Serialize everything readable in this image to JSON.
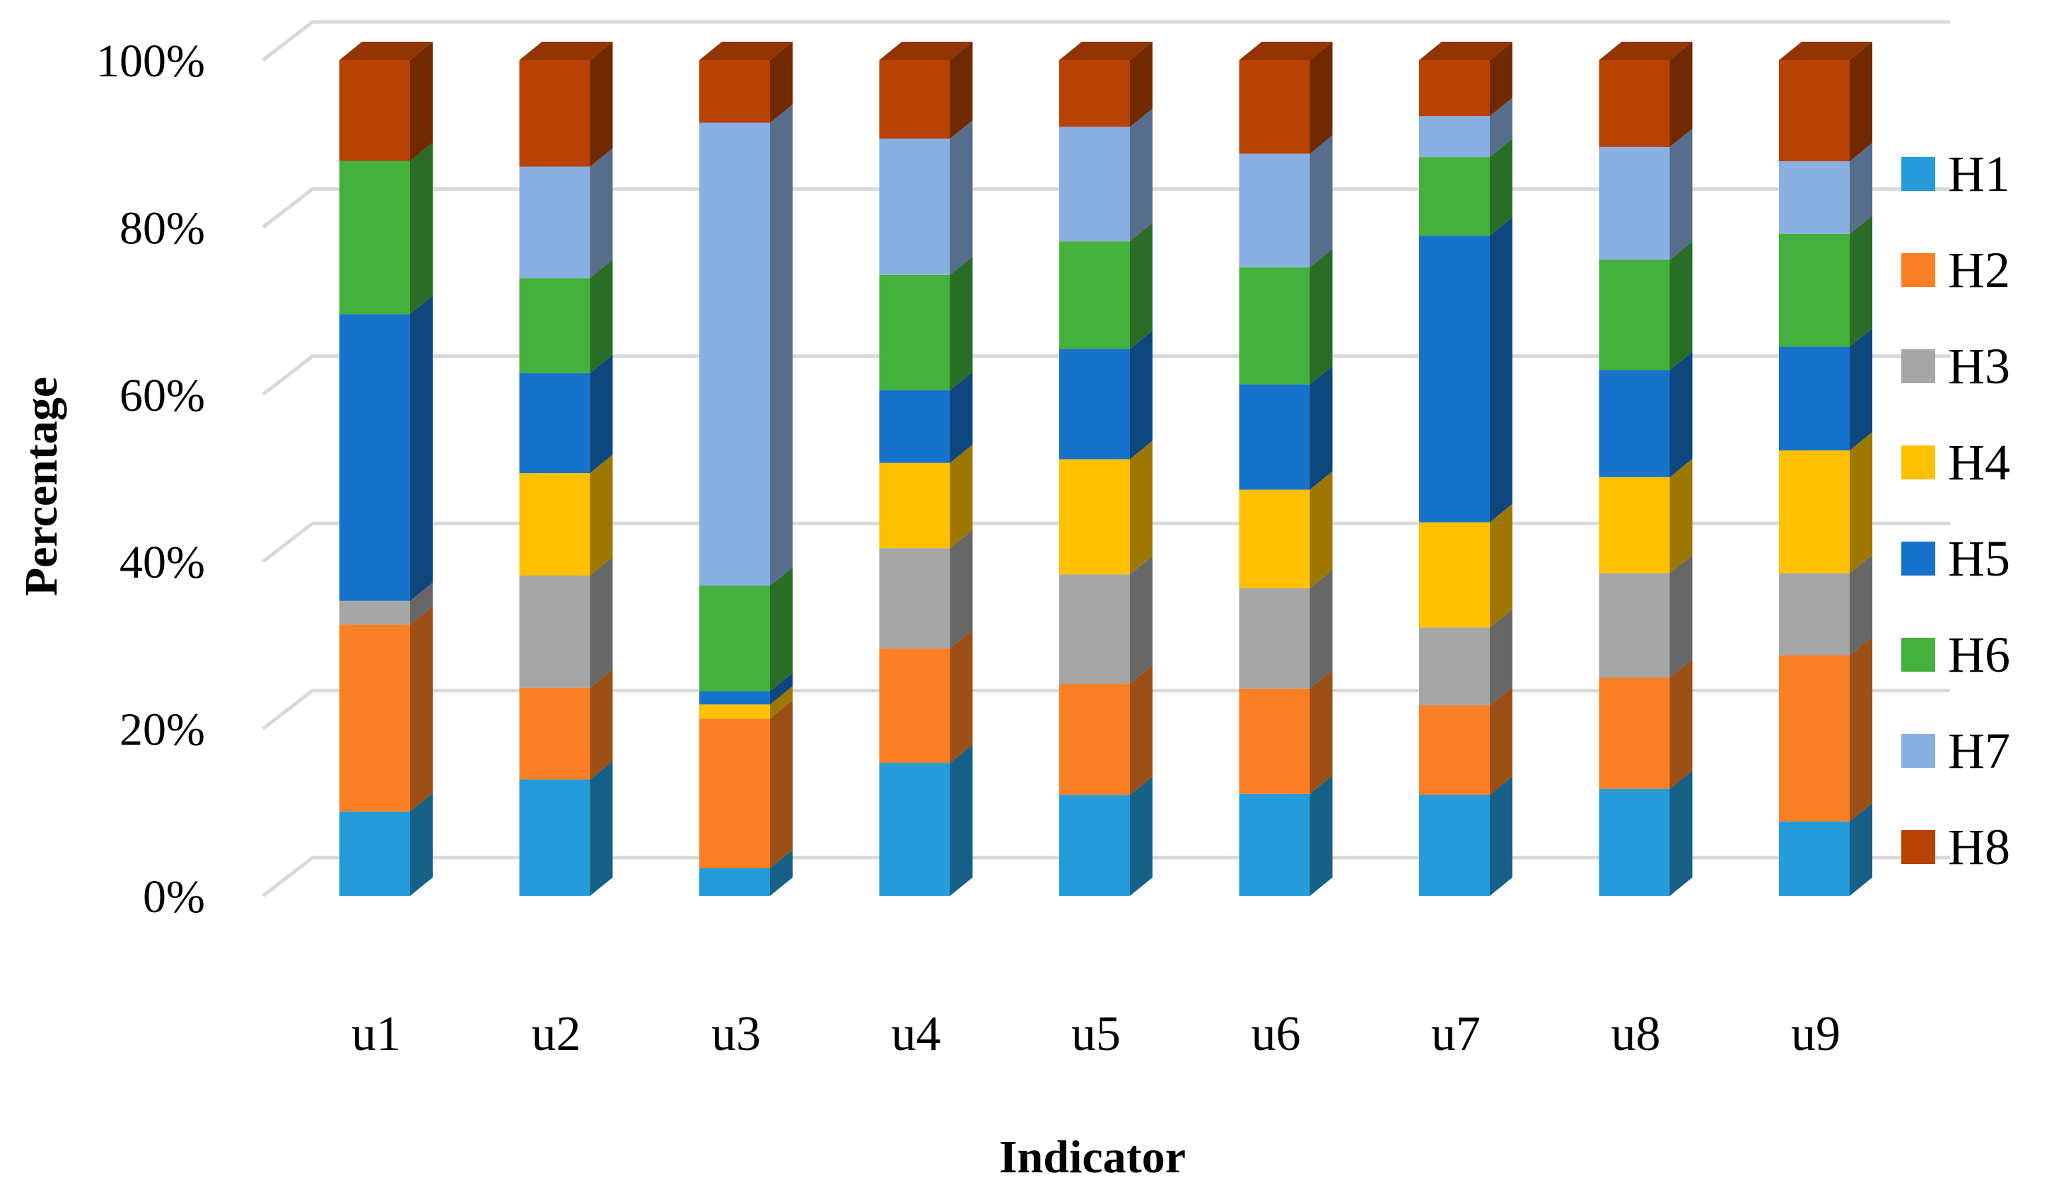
{
  "chart_data": {
    "type": "bar",
    "stacked": true,
    "normalized": true,
    "projection": "3d",
    "title": "",
    "xlabel": "Indicator",
    "ylabel": "Percentage",
    "ylim": [
      0,
      100
    ],
    "yticks": [
      0,
      20,
      40,
      60,
      80,
      100
    ],
    "ytick_labels": [
      "0%",
      "20%",
      "40%",
      "60%",
      "80%",
      "100%"
    ],
    "grid": true,
    "legend_position": "right",
    "categories": [
      "u1",
      "u2",
      "u3",
      "u4",
      "u5",
      "u6",
      "u7",
      "u8",
      "u9"
    ],
    "series": [
      {
        "name": "H1",
        "color": "#259BD9",
        "values": [
          10.3,
          14.2,
          3.3,
          15.9,
          12.1,
          12.2,
          12.1,
          12.8,
          8.9
        ]
      },
      {
        "name": "H2",
        "color": "#FB7F24",
        "values": [
          22.8,
          11.2,
          17.9,
          13.7,
          13.3,
          12.6,
          10.7,
          13.3,
          19.9
        ]
      },
      {
        "name": "H3",
        "color": "#A6A6A6",
        "values": [
          2.9,
          13.7,
          0.0,
          12.0,
          13.1,
          12.0,
          9.3,
          12.5,
          9.8
        ]
      },
      {
        "name": "H4",
        "color": "#FFC000",
        "values": [
          0.0,
          12.5,
          1.7,
          10.2,
          13.8,
          11.8,
          12.6,
          11.5,
          14.7
        ]
      },
      {
        "name": "H5",
        "color": "#1772CB",
        "values": [
          35.0,
          12.2,
          1.6,
          8.7,
          13.2,
          12.6,
          34.3,
          12.8,
          12.4
        ]
      },
      {
        "name": "H6",
        "color": "#44B03D",
        "values": [
          18.7,
          11.6,
          12.6,
          13.8,
          12.9,
          14.0,
          9.4,
          13.2,
          13.5
        ]
      },
      {
        "name": "H7",
        "color": "#8AAFE2",
        "values": [
          0.0,
          13.6,
          55.4,
          16.3,
          13.7,
          13.6,
          4.9,
          13.5,
          8.7
        ]
      },
      {
        "name": "H8",
        "color": "#B74202",
        "values": [
          12.3,
          13.0,
          7.5,
          9.4,
          8.0,
          11.2,
          6.7,
          10.4,
          12.1
        ]
      }
    ]
  }
}
